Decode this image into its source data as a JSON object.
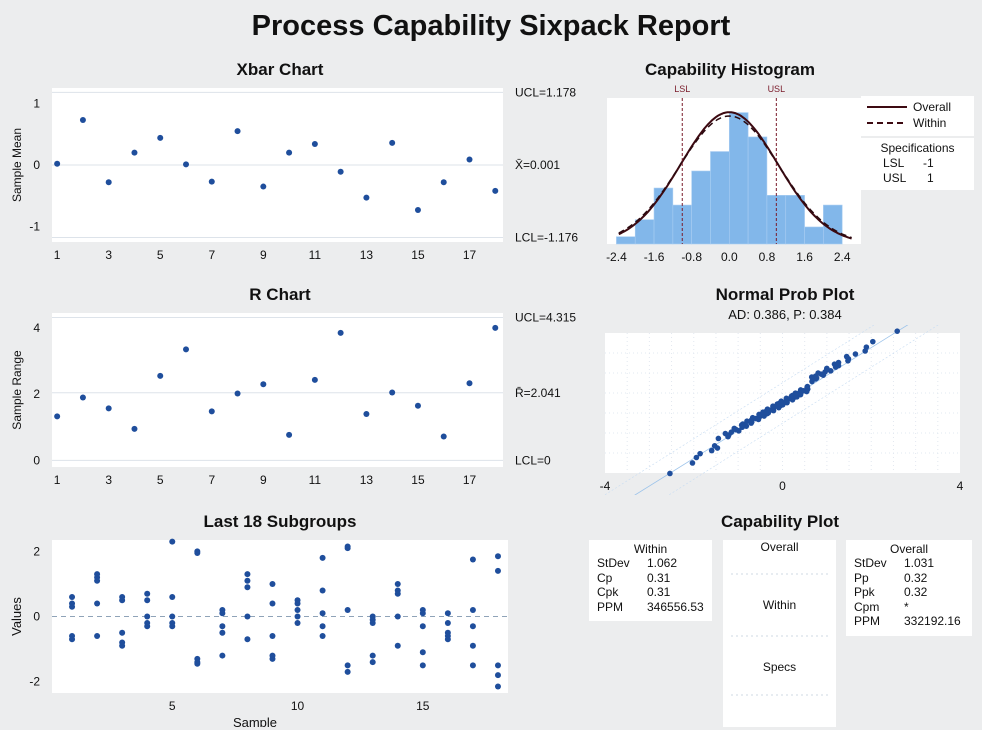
{
  "report_title": "Process Capability Sixpack Report",
  "chart_data": [
    {
      "id": "xbar",
      "type": "scatter",
      "title": "Xbar Chart",
      "ylabel": "Sample Mean",
      "xlabel": "",
      "xlim": [
        0.8,
        18.3
      ],
      "ylim": [
        -1.25,
        1.25
      ],
      "xticks": [
        1,
        3,
        5,
        7,
        9,
        11,
        13,
        15,
        17
      ],
      "yticks": [
        -1,
        0,
        1
      ],
      "x": [
        1,
        2,
        3,
        4,
        5,
        6,
        7,
        8,
        9,
        10,
        11,
        12,
        13,
        14,
        15,
        16,
        17,
        18
      ],
      "values": [
        0.02,
        0.73,
        -0.28,
        0.2,
        0.44,
        0.01,
        -0.27,
        0.55,
        -0.35,
        0.2,
        0.34,
        -0.11,
        -0.53,
        0.36,
        -0.73,
        -0.28,
        0.09,
        -0.42
      ],
      "ref_lines": [
        {
          "label": "UCL=1.178",
          "value": 1.178
        },
        {
          "label": "X̄=0.001",
          "value": 0.001
        },
        {
          "label": "LCL=-1.176",
          "value": -1.176
        }
      ]
    },
    {
      "id": "r",
      "type": "scatter",
      "title": "R Chart",
      "ylabel": "Sample Range",
      "xlabel": "",
      "xlim": [
        0.8,
        18.3
      ],
      "ylim": [
        -0.2,
        4.45
      ],
      "xticks": [
        1,
        3,
        5,
        7,
        9,
        11,
        13,
        15,
        17
      ],
      "yticks": [
        0,
        2,
        4
      ],
      "x": [
        1,
        2,
        3,
        4,
        5,
        6,
        7,
        8,
        9,
        10,
        11,
        12,
        13,
        14,
        15,
        16,
        17,
        18
      ],
      "values": [
        1.33,
        1.9,
        1.57,
        0.95,
        2.55,
        3.35,
        1.48,
        2.02,
        2.3,
        0.77,
        2.43,
        3.85,
        1.4,
        2.05,
        1.65,
        0.72,
        2.33,
        4.0
      ],
      "ref_lines": [
        {
          "label": "UCL=4.315",
          "value": 4.315
        },
        {
          "label": "R̄=2.041",
          "value": 2.041
        },
        {
          "label": "LCL=0",
          "value": 0
        }
      ]
    },
    {
      "id": "last",
      "type": "scatter",
      "title": "Last 18 Subgroups",
      "ylabel": "Values",
      "xlabel": "Sample",
      "xlim": [
        0.2,
        18.4
      ],
      "ylim": [
        -2.35,
        2.35
      ],
      "xticks": [
        5,
        10,
        15
      ],
      "yticks": [
        -2,
        0,
        2
      ],
      "subgroups": [
        [
          0.6,
          0.4,
          0.3,
          -0.6,
          -0.7
        ],
        [
          1.3,
          1.2,
          1.1,
          0.4,
          -0.6
        ],
        [
          0.6,
          0.5,
          -0.5,
          -0.8,
          -0.9
        ],
        [
          0.7,
          0.5,
          0.0,
          -0.2,
          -0.3
        ],
        [
          2.3,
          0.6,
          0.0,
          -0.2,
          -0.3
        ],
        [
          2.0,
          1.95,
          -1.3,
          -1.4,
          -1.45
        ],
        [
          0.2,
          0.1,
          -0.3,
          -0.5,
          -1.2
        ],
        [
          1.3,
          1.1,
          0.9,
          0.0,
          -0.7
        ],
        [
          1.0,
          0.4,
          -0.6,
          -1.2,
          -1.3
        ],
        [
          0.5,
          0.4,
          0.2,
          0.0,
          -0.2
        ],
        [
          1.8,
          0.8,
          0.1,
          -0.3,
          -0.6
        ],
        [
          2.15,
          2.1,
          0.2,
          -1.5,
          -1.7
        ],
        [
          0.0,
          -0.1,
          -0.2,
          -1.2,
          -1.4
        ],
        [
          1.0,
          0.8,
          0.7,
          0.0,
          -0.9
        ],
        [
          0.2,
          0.1,
          -0.3,
          -1.1,
          -1.5
        ],
        [
          0.1,
          -0.2,
          -0.5,
          -0.6,
          -0.7
        ],
        [
          1.75,
          0.2,
          -0.3,
          -0.9,
          -1.5
        ],
        [
          1.85,
          1.4,
          -1.5,
          -1.8,
          -2.15
        ]
      ],
      "ref_line": 0
    },
    {
      "id": "hist",
      "type": "bar",
      "title": "Capability Histogram",
      "xlim": [
        -2.6,
        2.8
      ],
      "ylim": [
        0,
        0.6
      ],
      "xticks": [
        -2.4,
        -1.6,
        -0.8,
        0.0,
        0.8,
        1.6,
        2.4
      ],
      "bins": [
        {
          "x0": -2.4,
          "x1": -2.0,
          "h": 0.03
        },
        {
          "x0": -2.0,
          "x1": -1.6,
          "h": 0.1
        },
        {
          "x0": -1.6,
          "x1": -1.2,
          "h": 0.23
        },
        {
          "x0": -1.2,
          "x1": -0.8,
          "h": 0.16
        },
        {
          "x0": -0.8,
          "x1": -0.4,
          "h": 0.3
        },
        {
          "x0": -0.4,
          "x1": 0.0,
          "h": 0.38
        },
        {
          "x0": 0.0,
          "x1": 0.4,
          "h": 0.54
        },
        {
          "x0": 0.4,
          "x1": 0.8,
          "h": 0.44
        },
        {
          "x0": 0.8,
          "x1": 1.2,
          "h": 0.2
        },
        {
          "x0": 1.2,
          "x1": 1.6,
          "h": 0.2
        },
        {
          "x0": 1.6,
          "x1": 2.0,
          "h": 0.07
        },
        {
          "x0": 2.0,
          "x1": 2.4,
          "h": 0.16
        }
      ],
      "spec_lines": [
        {
          "label": "LSL",
          "value": -1
        },
        {
          "label": "USL",
          "value": 1
        }
      ],
      "curves": [
        {
          "name": "Overall",
          "mean": 0.001,
          "sd": 1.031,
          "style": "solid"
        },
        {
          "name": "Within",
          "mean": 0.001,
          "sd": 1.062,
          "style": "dashed"
        }
      ],
      "legend_title": "Specifications",
      "spec_table": [
        {
          "label": "LSL",
          "value": "-1"
        },
        {
          "label": "USL",
          "value": "1"
        }
      ]
    },
    {
      "id": "prob",
      "type": "scatter",
      "title": "Normal Prob Plot",
      "subtitle": "AD: 0.386, P: 0.384",
      "xlim": [
        -4,
        4
      ],
      "xticks": [
        -4,
        0,
        4
      ],
      "n_points": 90
    }
  ],
  "capability": {
    "title": "Capability Plot",
    "within": {
      "heading": "Within",
      "rows": [
        {
          "k": "StDev",
          "v": "1.062"
        },
        {
          "k": "Cp",
          "v": "0.31"
        },
        {
          "k": "Cpk",
          "v": "0.31"
        },
        {
          "k": "PPM",
          "v": "346556.53"
        }
      ]
    },
    "overall": {
      "heading": "Overall",
      "rows": [
        {
          "k": "StDev",
          "v": "1.031"
        },
        {
          "k": "Pp",
          "v": "0.32"
        },
        {
          "k": "Ppk",
          "v": "0.32"
        },
        {
          "k": "Cpm",
          "v": "*"
        },
        {
          "k": "PPM",
          "v": "332192.16"
        }
      ]
    },
    "mid_labels": {
      "overall": "Overall",
      "within": "Within",
      "specs": "Specs"
    }
  },
  "colors": {
    "point": "#1f4e9c",
    "bar": "#82b7ea",
    "overall": "#3d0a12",
    "spec": "#7a1b2a"
  }
}
